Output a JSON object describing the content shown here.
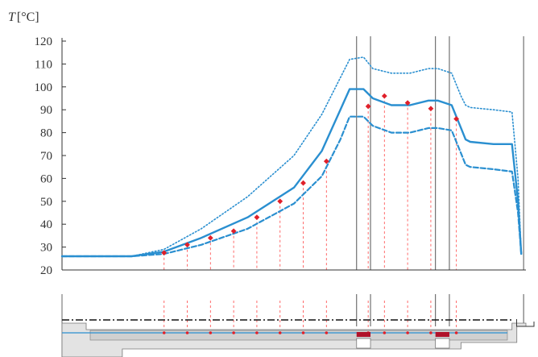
{
  "chart_data": {
    "type": "line",
    "ylabel": "T [°C]",
    "ylabel_symbol": "T",
    "ylabel_unit": "[°C]",
    "ylim": [
      20,
      120
    ],
    "yticks": [
      20,
      30,
      40,
      50,
      60,
      70,
      80,
      90,
      100,
      110,
      120
    ],
    "x_range": [
      0,
      100
    ],
    "grid": false,
    "legend": "none",
    "colors": {
      "curve": "#2a8fd0",
      "measured": "#e0202a",
      "marker_line": "#ff5a5a",
      "zone_line": "#555555",
      "schematic_fill": "#e3e3e3"
    },
    "series": [
      {
        "style": "dotted",
        "x": [
          0,
          15,
          22,
          30,
          40,
          50,
          56,
          60,
          62,
          65,
          67,
          71,
          75,
          79,
          81,
          84,
          86,
          87,
          88,
          93,
          97,
          98.3,
          99
        ],
        "y": [
          26,
          26,
          29,
          38,
          52,
          70,
          88,
          104,
          112,
          113,
          108,
          106,
          106,
          108,
          108,
          106,
          96,
          92,
          91,
          90,
          89,
          60,
          27
        ]
      },
      {
        "style": "solid",
        "x": [
          0,
          15,
          22,
          30,
          40,
          50,
          56,
          60,
          62,
          65,
          67,
          71,
          75,
          79,
          81,
          84,
          86,
          87,
          88,
          93,
          97,
          98.3,
          99
        ],
        "y": [
          26,
          26,
          28,
          34,
          43,
          56,
          72,
          90,
          99,
          99,
          95,
          92,
          92,
          94,
          94,
          92,
          82,
          77,
          76,
          75,
          75,
          50,
          27
        ]
      },
      {
        "style": "dashed",
        "x": [
          0,
          15,
          22,
          30,
          40,
          50,
          56,
          60,
          62,
          65,
          67,
          71,
          75,
          79,
          81,
          84,
          86,
          87,
          88,
          93,
          97,
          98.3,
          99
        ],
        "y": [
          26,
          26,
          27,
          31,
          38,
          49,
          61,
          77,
          87,
          87,
          83,
          80,
          80,
          82,
          82,
          81,
          71,
          66,
          65,
          64,
          63,
          45,
          27
        ]
      }
    ],
    "measured_points": {
      "x": [
        22,
        27,
        32,
        37,
        42,
        47,
        52,
        57,
        66,
        69.5,
        74.5,
        79.5,
        85
      ],
      "y": [
        27.5,
        31,
        34,
        37,
        43,
        50,
        58,
        67.5,
        91.5,
        96,
        93,
        90.5,
        86
      ]
    },
    "zone_boundaries": [
      63.5,
      66.5,
      80.5,
      83.5,
      99.5
    ]
  }
}
